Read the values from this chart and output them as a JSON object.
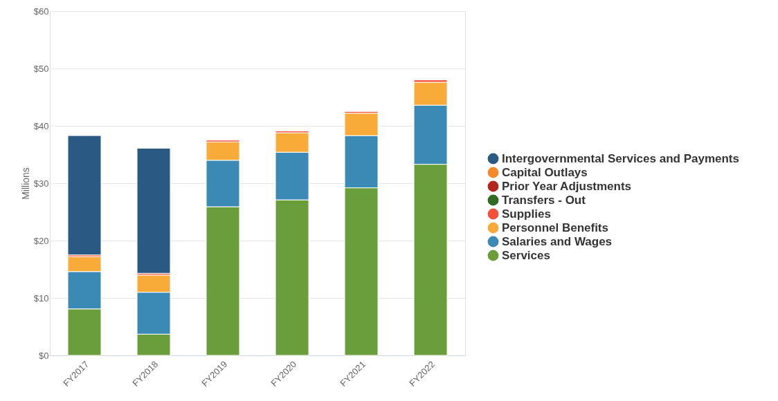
{
  "chart_data": {
    "type": "bar",
    "stacked": true,
    "ylabel": "Millions",
    "categories": [
      "FY2017",
      "FY2018",
      "FY2019",
      "FY2020",
      "FY2021",
      "FY2022"
    ],
    "series": [
      {
        "name": "Services",
        "color": "#6a9e3a",
        "values": [
          8.1,
          3.7,
          25.9,
          27.1,
          29.2,
          33.3
        ]
      },
      {
        "name": "Salaries and Wages",
        "color": "#3b89b5",
        "values": [
          6.5,
          7.3,
          8.1,
          8.3,
          9.1,
          10.3
        ]
      },
      {
        "name": "Personnel Benefits",
        "color": "#f8ab38",
        "values": [
          2.6,
          3.0,
          3.2,
          3.4,
          3.9,
          4.0
        ]
      },
      {
        "name": "Supplies",
        "color": "#f4503a",
        "values": [
          0.3,
          0.3,
          0.3,
          0.3,
          0.3,
          0.4
        ]
      },
      {
        "name": "Transfers - Out",
        "color": "#2f6b22",
        "values": [
          null,
          null,
          null,
          null,
          null,
          null
        ]
      },
      {
        "name": "Prior Year Adjustments",
        "color": "#b5251f",
        "values": [
          null,
          null,
          null,
          null,
          null,
          null
        ]
      },
      {
        "name": "Capital Outlays",
        "color": "#f58a2b",
        "values": [
          null,
          null,
          null,
          null,
          null,
          null
        ]
      },
      {
        "name": "Intergovernmental Services and Payments",
        "color": "#2a5a83",
        "values": [
          20.8,
          21.8,
          null,
          null,
          null,
          null
        ]
      }
    ],
    "ylim": [
      0,
      60
    ],
    "yticks": [
      {
        "value": 0,
        "label": "$0"
      },
      {
        "value": 10,
        "label": "$10"
      },
      {
        "value": 20,
        "label": "$20"
      },
      {
        "value": 30,
        "label": "$30"
      },
      {
        "value": 40,
        "label": "$40"
      },
      {
        "value": 50,
        "label": "$50"
      },
      {
        "value": 60,
        "label": "$60"
      }
    ],
    "grid": "y",
    "legend": "right"
  }
}
